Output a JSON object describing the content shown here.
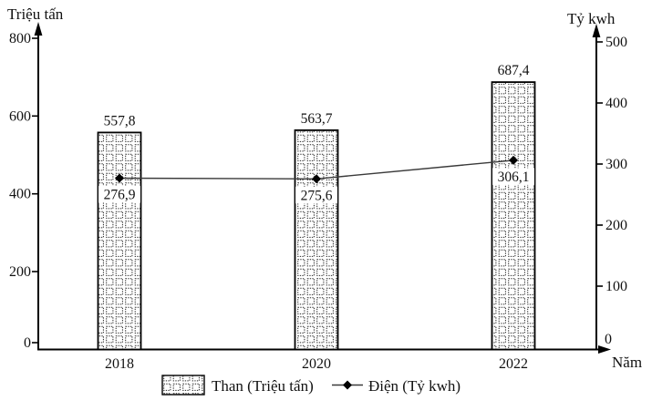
{
  "chart_data": {
    "type": "bar+line",
    "title": "",
    "x_axis": {
      "title": "Năm",
      "categories": [
        "2018",
        "2020",
        "2022"
      ]
    },
    "left_axis": {
      "title": "Triệu tấn",
      "range": [
        0,
        800
      ],
      "ticks": [
        0,
        200,
        400,
        600,
        800
      ],
      "tick_labels": [
        "0",
        "200",
        "400",
        "600",
        "800"
      ]
    },
    "right_axis": {
      "title": "Tỷ kwh",
      "range": [
        0,
        500
      ],
      "ticks": [
        0,
        100,
        200,
        300,
        400,
        500
      ],
      "tick_labels": [
        "0",
        "100",
        "200",
        "300",
        "400",
        "500"
      ]
    },
    "bar_series": {
      "name": "Than (Triệu tấn)",
      "axis": "left",
      "values": [
        557.8,
        563.7,
        687.4
      ],
      "value_labels": [
        "557,8",
        "563,7",
        "687,4"
      ]
    },
    "line_series": {
      "name": "Điện (Tỷ kwh)",
      "axis": "right",
      "values": [
        276.9,
        275.6,
        306.1
      ],
      "value_labels": [
        "276,9",
        "275,6",
        "306,1"
      ]
    },
    "legend_position": "bottom",
    "grid": "off",
    "colors": {
      "ink": "#000000",
      "line": "#3a3a3a",
      "background": "#ffffff"
    }
  }
}
